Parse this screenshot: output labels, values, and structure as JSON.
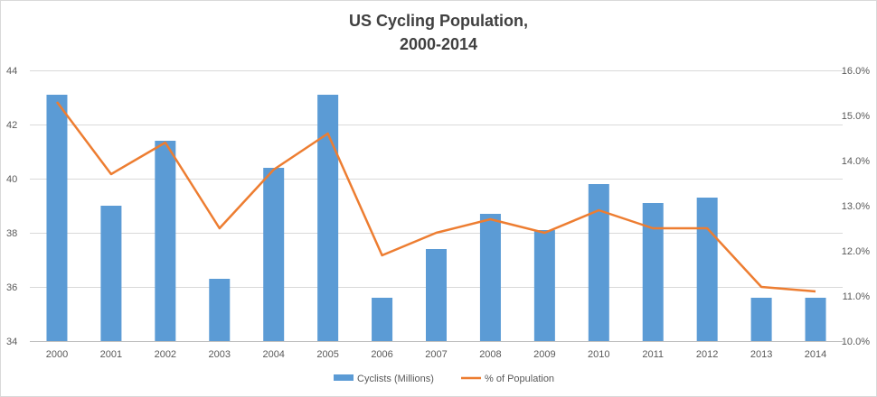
{
  "chart_data": {
    "type": "bar",
    "title_line1": "US Cycling Population,",
    "title_line2": "2000-2014",
    "categories": [
      "2000",
      "2001",
      "2002",
      "2003",
      "2004",
      "2005",
      "2006",
      "2007",
      "2008",
      "2009",
      "2010",
      "2011",
      "2012",
      "2013",
      "2014"
    ],
    "series": [
      {
        "name": "Cyclists (Millions)",
        "type": "bar",
        "axis": "left",
        "color": "#5B9BD5",
        "values": [
          43.1,
          39.0,
          41.4,
          36.3,
          40.4,
          43.1,
          35.6,
          37.4,
          38.7,
          38.1,
          39.8,
          39.1,
          39.3,
          35.6,
          35.6
        ]
      },
      {
        "name": "% of Population",
        "type": "line",
        "axis": "right",
        "color": "#ED7D31",
        "values": [
          15.3,
          13.7,
          14.4,
          12.5,
          13.8,
          14.6,
          11.9,
          12.4,
          12.7,
          12.4,
          12.9,
          12.5,
          12.5,
          11.2,
          11.1
        ]
      }
    ],
    "y_left": {
      "min": 34,
      "max": 44,
      "step": 2,
      "ticks": [
        "34",
        "36",
        "38",
        "40",
        "42",
        "44"
      ]
    },
    "y_right": {
      "min": 10,
      "max": 16,
      "step": 1,
      "ticks": [
        "10.0%",
        "11.0%",
        "12.0%",
        "13.0%",
        "14.0%",
        "15.0%",
        "16.0%"
      ]
    },
    "grid": true,
    "legend_position": "bottom"
  }
}
